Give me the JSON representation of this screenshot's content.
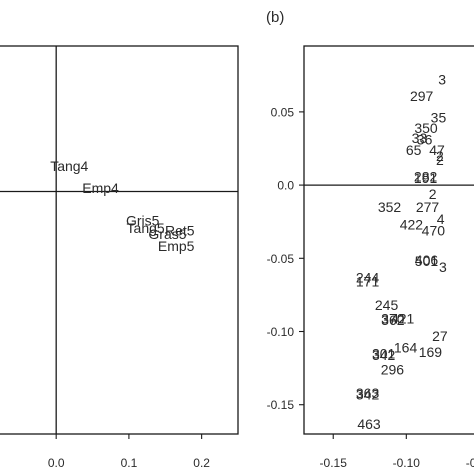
{
  "chart_data": [
    {
      "type": "scatter",
      "panel_label": "",
      "title": "",
      "xlabel": "",
      "ylabel": "",
      "xlim": [
        -0.08,
        0.25
      ],
      "ylim": [
        -0.2,
        0.12
      ],
      "reference_lines": {
        "x": 0,
        "y": 0
      },
      "grid": false,
      "x_ticks": [
        {
          "value": 0.0,
          "label": "0.0"
        },
        {
          "value": 0.1,
          "label": "0.1"
        },
        {
          "value": 0.2,
          "label": "0.2"
        }
      ],
      "y_ticks": [],
      "points": [
        {
          "label": "Tang4",
          "x": 0.018,
          "y": 0.021
        },
        {
          "label": "Emp4",
          "x": 0.061,
          "y": 0.003
        },
        {
          "label": "Gris5",
          "x": 0.119,
          "y": -0.024
        },
        {
          "label": "Tang5",
          "x": 0.123,
          "y": -0.03
        },
        {
          "label": "Ret5",
          "x": 0.17,
          "y": -0.032
        },
        {
          "label": "Gras5",
          "x": 0.153,
          "y": -0.035
        },
        {
          "label": "Emp5",
          "x": 0.165,
          "y": -0.045
        }
      ]
    },
    {
      "type": "scatter",
      "panel_label": "(b)",
      "title": "",
      "xlabel": "",
      "ylabel": "",
      "xlim": [
        -0.17,
        -0.04
      ],
      "ylim": [
        -0.17,
        0.095
      ],
      "reference_lines": {
        "y": 0
      },
      "grid": false,
      "x_ticks": [
        {
          "value": -0.15,
          "label": "-0.15"
        },
        {
          "value": -0.1,
          "label": "-0.10"
        },
        {
          "value": -0.05,
          "label": "-0.05"
        }
      ],
      "y_ticks": [
        {
          "value": 0.05,
          "label": "0.05"
        },
        {
          "value": 0.0,
          "label": "0.0"
        },
        {
          "value": -0.05,
          "label": "-0.05"
        },
        {
          "value": -0.1,
          "label": "-0.10"
        },
        {
          "value": -0.15,
          "label": "-0.15"
        }
      ],
      "points": [
        {
          "label": "297",
          "x": -0.0895,
          "y": 0.061
        },
        {
          "label": "3",
          "x": -0.0755,
          "y": 0.072
        },
        {
          "label": "35",
          "x": -0.078,
          "y": 0.046
        },
        {
          "label": "350",
          "x": -0.0865,
          "y": 0.039
        },
        {
          "label": "36",
          "x": -0.0875,
          "y": 0.031
        },
        {
          "label": "33",
          "x": -0.091,
          "y": 0.032
        },
        {
          "label": "47",
          "x": -0.079,
          "y": 0.024
        },
        {
          "label": "65",
          "x": -0.095,
          "y": 0.024
        },
        {
          "label": "2",
          "x": -0.077,
          "y": 0.017
        },
        {
          "label": "2",
          "x": -0.077,
          "y": 0.02
        },
        {
          "label": "282",
          "x": -0.0868,
          "y": 0.006
        },
        {
          "label": "191",
          "x": -0.0868,
          "y": 0.005
        },
        {
          "label": "2",
          "x": -0.082,
          "y": -0.006
        },
        {
          "label": "352",
          "x": -0.1115,
          "y": -0.015
        },
        {
          "label": "277",
          "x": -0.0855,
          "y": -0.015
        },
        {
          "label": "4",
          "x": -0.0765,
          "y": -0.023
        },
        {
          "label": "422",
          "x": -0.0965,
          "y": -0.027
        },
        {
          "label": "470",
          "x": -0.0815,
          "y": -0.031
        },
        {
          "label": "406",
          "x": -0.0862,
          "y": -0.051
        },
        {
          "label": "501",
          "x": -0.0862,
          "y": -0.052
        },
        {
          "label": "3",
          "x": -0.075,
          "y": -0.056
        },
        {
          "label": "244",
          "x": -0.1265,
          "y": -0.063
        },
        {
          "label": "171",
          "x": -0.1265,
          "y": -0.066
        },
        {
          "label": "245",
          "x": -0.1135,
          "y": -0.082
        },
        {
          "label": "370",
          "x": -0.1092,
          "y": -0.091
        },
        {
          "label": "362",
          "x": -0.1092,
          "y": -0.092
        },
        {
          "label": "421",
          "x": -0.1025,
          "y": -0.091
        },
        {
          "label": "27",
          "x": -0.077,
          "y": -0.103
        },
        {
          "label": "164",
          "x": -0.1005,
          "y": -0.111
        },
        {
          "label": "169",
          "x": -0.0835,
          "y": -0.114
        },
        {
          "label": "301",
          "x": -0.1155,
          "y": -0.115
        },
        {
          "label": "342",
          "x": -0.1155,
          "y": -0.116
        },
        {
          "label": "296",
          "x": -0.1095,
          "y": -0.126
        },
        {
          "label": "363",
          "x": -0.1265,
          "y": -0.142
        },
        {
          "label": "342",
          "x": -0.1265,
          "y": -0.143
        },
        {
          "label": "463",
          "x": -0.1255,
          "y": -0.163
        }
      ]
    }
  ]
}
